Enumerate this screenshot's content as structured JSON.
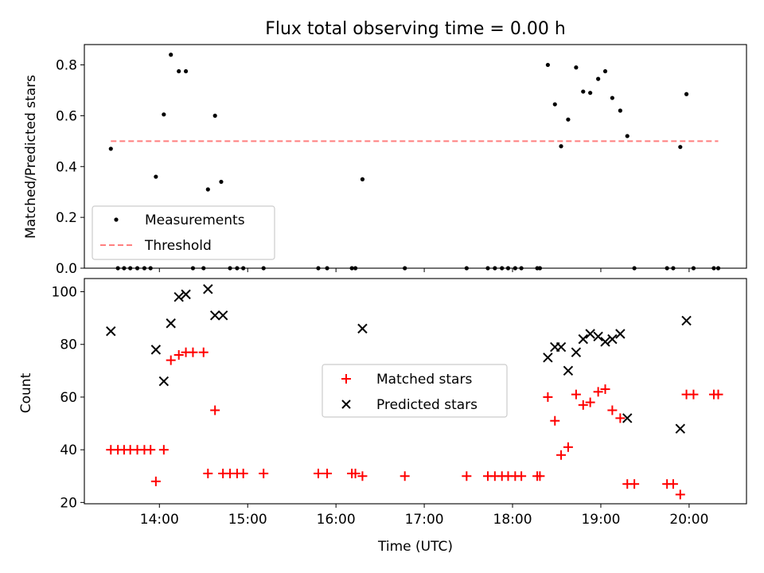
{
  "chart_data": [
    {
      "type": "scatter",
      "title": "Flux total observing time = 0.00 h",
      "ylabel": "Matched/Predicted stars",
      "xlabel": "",
      "ylim": [
        0,
        0.88
      ],
      "yticks": [
        0.0,
        0.2,
        0.4,
        0.6,
        0.8
      ],
      "ytick_labels": [
        "0.0",
        "0.2",
        "0.4",
        "0.6",
        "0.8"
      ],
      "legend": {
        "placement": "lower-left",
        "entries": [
          {
            "label": "Measurements",
            "marker": "dot",
            "color": "#000000"
          },
          {
            "label": "Threshold",
            "marker": "dashed-line",
            "color": "#ff7f7f"
          }
        ]
      },
      "series": [
        {
          "name": "Measurements",
          "color": "#000000",
          "points": [
            [
              13.45,
              0.47
            ],
            [
              13.53,
              0.0
            ],
            [
              13.6,
              0.0
            ],
            [
              13.67,
              0.0
            ],
            [
              13.75,
              0.0
            ],
            [
              13.83,
              0.0
            ],
            [
              13.9,
              0.0
            ],
            [
              13.96,
              0.36
            ],
            [
              14.05,
              0.605
            ],
            [
              14.13,
              0.84
            ],
            [
              14.22,
              0.775
            ],
            [
              14.3,
              0.775
            ],
            [
              14.38,
              0.0
            ],
            [
              14.5,
              0.0
            ],
            [
              14.55,
              0.31
            ],
            [
              14.63,
              0.6
            ],
            [
              14.7,
              0.34
            ],
            [
              14.8,
              0.0
            ],
            [
              14.88,
              0.0
            ],
            [
              14.95,
              0.0
            ],
            [
              15.18,
              0.0
            ],
            [
              15.8,
              0.0
            ],
            [
              15.9,
              0.0
            ],
            [
              16.18,
              0.0
            ],
            [
              16.22,
              0.0
            ],
            [
              16.3,
              0.35
            ],
            [
              16.78,
              0.0
            ],
            [
              17.48,
              0.0
            ],
            [
              17.72,
              0.0
            ],
            [
              17.8,
              0.0
            ],
            [
              17.88,
              0.0
            ],
            [
              17.95,
              0.0
            ],
            [
              18.03,
              0.0
            ],
            [
              18.1,
              0.0
            ],
            [
              18.28,
              0.0
            ],
            [
              18.31,
              0.0
            ],
            [
              18.4,
              0.8
            ],
            [
              18.48,
              0.645
            ],
            [
              18.55,
              0.48
            ],
            [
              18.63,
              0.585
            ],
            [
              18.72,
              0.79
            ],
            [
              18.8,
              0.695
            ],
            [
              18.88,
              0.69
            ],
            [
              18.97,
              0.745
            ],
            [
              19.05,
              0.775
            ],
            [
              19.13,
              0.67
            ],
            [
              19.22,
              0.62
            ],
            [
              19.3,
              0.52
            ],
            [
              19.38,
              0.0
            ],
            [
              19.75,
              0.0
            ],
            [
              19.82,
              0.0
            ],
            [
              19.9,
              0.477
            ],
            [
              19.97,
              0.685
            ],
            [
              20.05,
              0.0
            ],
            [
              20.28,
              0.0
            ],
            [
              20.33,
              0.0
            ]
          ]
        },
        {
          "name": "Threshold",
          "color": "#ff7f7f",
          "points": [
            [
              13.45,
              0.5
            ],
            [
              20.33,
              0.5
            ]
          ]
        }
      ]
    },
    {
      "type": "scatter",
      "title": "",
      "ylabel": "Count",
      "xlabel": "Time (UTC)",
      "ylim": [
        19.5,
        105
      ],
      "yticks": [
        20,
        40,
        60,
        80,
        100
      ],
      "ytick_labels": [
        "20",
        "40",
        "60",
        "80",
        "100"
      ],
      "xlim": [
        13.15,
        20.65
      ],
      "xticks": [
        14,
        15,
        16,
        17,
        18,
        19,
        20
      ],
      "xtick_labels": [
        "14:00",
        "15:00",
        "16:00",
        "17:00",
        "18:00",
        "19:00",
        "20:00"
      ],
      "legend": {
        "placement": "center",
        "entries": [
          {
            "label": "Matched stars",
            "marker": "plus",
            "color": "#ff0000"
          },
          {
            "label": "Predicted stars",
            "marker": "x",
            "color": "#000000"
          }
        ]
      },
      "series": [
        {
          "name": "Matched stars",
          "color": "#ff0000",
          "points": [
            [
              13.45,
              40
            ],
            [
              13.53,
              40
            ],
            [
              13.6,
              40
            ],
            [
              13.67,
              40
            ],
            [
              13.75,
              40
            ],
            [
              13.83,
              40
            ],
            [
              13.9,
              40
            ],
            [
              13.96,
              28
            ],
            [
              14.05,
              40
            ],
            [
              14.13,
              74
            ],
            [
              14.22,
              76
            ],
            [
              14.3,
              77
            ],
            [
              14.38,
              77
            ],
            [
              14.5,
              77
            ],
            [
              14.55,
              31
            ],
            [
              14.63,
              55
            ],
            [
              14.72,
              31
            ],
            [
              14.8,
              31
            ],
            [
              14.88,
              31
            ],
            [
              14.95,
              31
            ],
            [
              15.18,
              31
            ],
            [
              15.8,
              31
            ],
            [
              15.9,
              31
            ],
            [
              16.18,
              31
            ],
            [
              16.22,
              31
            ],
            [
              16.3,
              30
            ],
            [
              16.78,
              30
            ],
            [
              17.48,
              30
            ],
            [
              17.72,
              30
            ],
            [
              17.8,
              30
            ],
            [
              17.88,
              30
            ],
            [
              17.95,
              30
            ],
            [
              18.03,
              30
            ],
            [
              18.1,
              30
            ],
            [
              18.28,
              30
            ],
            [
              18.31,
              30
            ],
            [
              18.4,
              60
            ],
            [
              18.48,
              51
            ],
            [
              18.55,
              38
            ],
            [
              18.63,
              41
            ],
            [
              18.72,
              61
            ],
            [
              18.8,
              57
            ],
            [
              18.88,
              58
            ],
            [
              18.97,
              62
            ],
            [
              19.05,
              63
            ],
            [
              19.13,
              55
            ],
            [
              19.22,
              52
            ],
            [
              19.3,
              27
            ],
            [
              19.38,
              27
            ],
            [
              19.75,
              27
            ],
            [
              19.82,
              27
            ],
            [
              19.9,
              23
            ],
            [
              19.97,
              61
            ],
            [
              20.05,
              61
            ],
            [
              20.28,
              61
            ],
            [
              20.33,
              61
            ]
          ]
        },
        {
          "name": "Predicted stars",
          "color": "#000000",
          "points": [
            [
              13.45,
              85
            ],
            [
              13.96,
              78
            ],
            [
              14.05,
              66
            ],
            [
              14.13,
              88
            ],
            [
              14.22,
              98
            ],
            [
              14.3,
              99
            ],
            [
              14.55,
              101
            ],
            [
              14.63,
              91
            ],
            [
              14.72,
              91
            ],
            [
              16.3,
              86
            ],
            [
              18.4,
              75
            ],
            [
              18.48,
              79
            ],
            [
              18.55,
              79
            ],
            [
              18.63,
              70
            ],
            [
              18.72,
              77
            ],
            [
              18.8,
              82
            ],
            [
              18.88,
              84
            ],
            [
              18.97,
              83
            ],
            [
              19.05,
              81
            ],
            [
              19.13,
              82
            ],
            [
              19.22,
              84
            ],
            [
              19.3,
              52
            ],
            [
              19.9,
              48
            ],
            [
              19.97,
              89
            ]
          ]
        }
      ]
    }
  ]
}
